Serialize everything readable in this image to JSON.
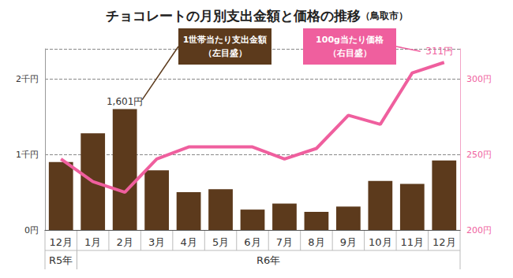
{
  "chart_data": {
    "type": "bar",
    "title": "チョコレートの月別支出金額と価格の推移",
    "subtitle": "（鳥取市）",
    "categories": [
      "12月",
      "1月",
      "2月",
      "3月",
      "4月",
      "5月",
      "6月",
      "7月",
      "8月",
      "9月",
      "10月",
      "11月",
      "12月"
    ],
    "annotations": [
      {
        "text": "R5年",
        "from": 0,
        "to": 0
      },
      {
        "text": "R6年",
        "from": 1,
        "to": 12
      }
    ],
    "series": [
      {
        "name": "1世帯当たり支出金額",
        "axis_note": "（左目盛）",
        "type": "bar",
        "color": "#5c3a1c",
        "values": [
          900,
          1280,
          1601,
          790,
          500,
          540,
          270,
          350,
          240,
          310,
          650,
          610,
          920
        ],
        "value_labels": [
          null,
          null,
          "1,601円",
          null,
          null,
          null,
          null,
          null,
          null,
          null,
          null,
          null,
          null
        ]
      },
      {
        "name": "100g当たり価格",
        "axis_note": "（右目盛）",
        "type": "line",
        "axis": "y2",
        "color": "#ef5f9e",
        "values": [
          247,
          232,
          225,
          247,
          255,
          255,
          255,
          247,
          254,
          276,
          270,
          304,
          311
        ],
        "value_labels": [
          null,
          null,
          null,
          null,
          null,
          null,
          null,
          null,
          null,
          null,
          null,
          null,
          "311円"
        ]
      }
    ],
    "ylim": [
      0,
      2400
    ],
    "yticks": [
      {
        "value": 0,
        "label": "0円"
      },
      {
        "value": 1000,
        "label": "1千円"
      },
      {
        "value": 2000,
        "label": "2千円"
      }
    ],
    "y2lim": [
      200,
      320
    ],
    "y2ticks": [
      {
        "value": 200,
        "label": "200円"
      },
      {
        "value": 250,
        "label": "250円"
      },
      {
        "value": 300,
        "label": "300円"
      }
    ],
    "grid": true
  }
}
